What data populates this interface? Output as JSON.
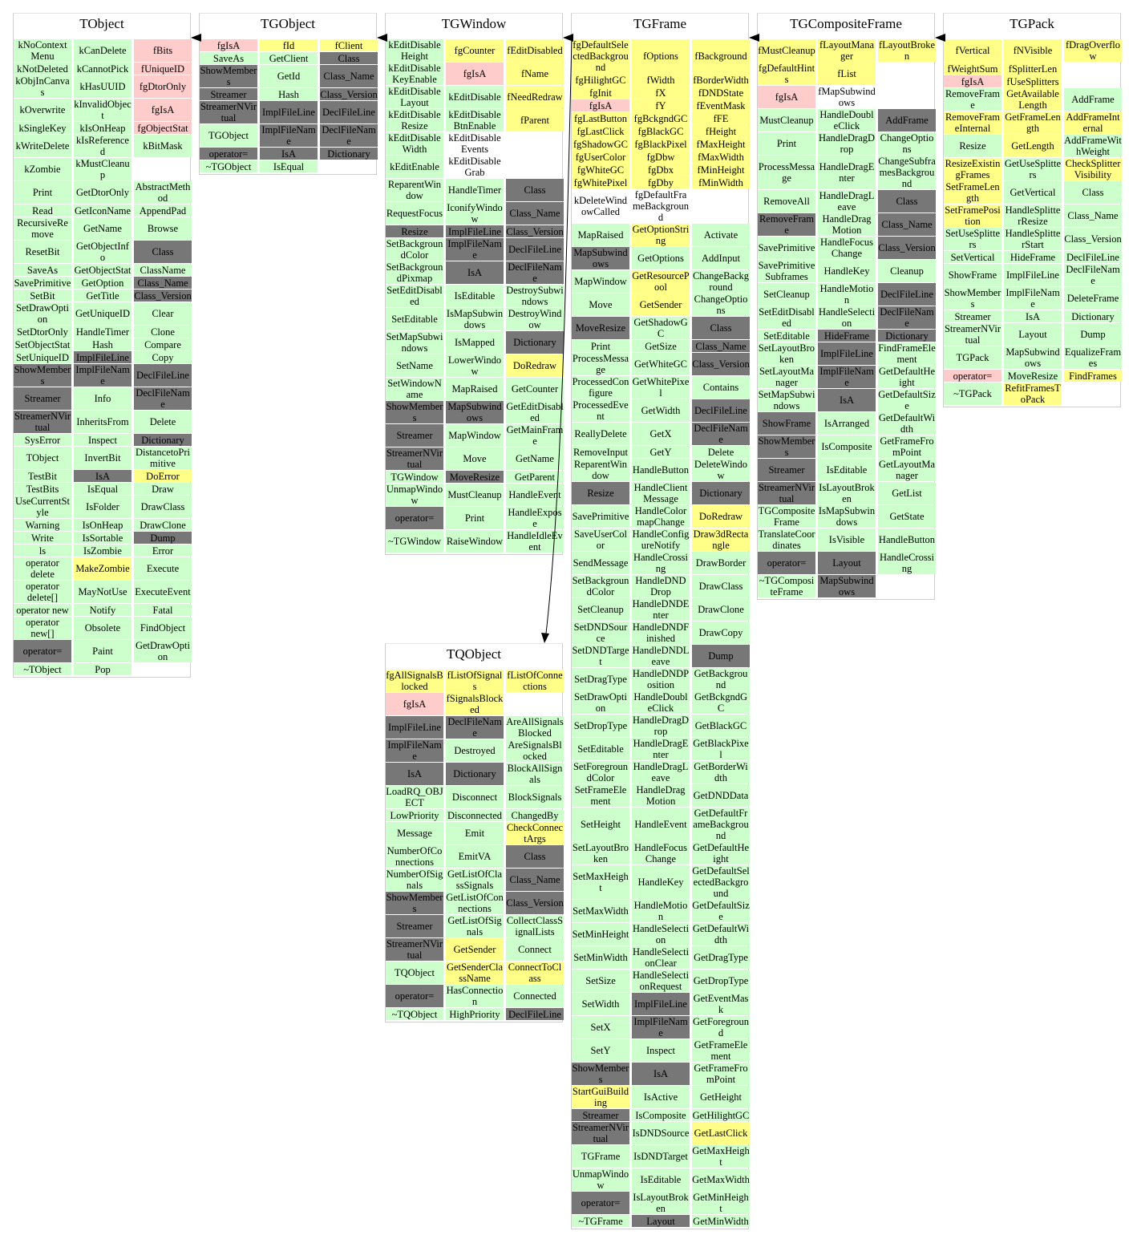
{
  "fill_colors": {
    "s": "#ccffcc",
    "p": "#ffcccc",
    "y": "#ffff88",
    "g": "#777777",
    "n": "transparent"
  },
  "classes": [
    {
      "name": "TObject",
      "columns": [
        {
          "items": [
            "kNoContextMenu",
            "kNotDeleted",
            "kObjInCanvas",
            "kOverwrite",
            "kSingleKey",
            "kWriteDelete",
            "kZombie",
            "Print",
            "Read",
            "RecursiveRemove",
            "ResetBit",
            "SaveAs",
            "SavePrimitive",
            "SetBit",
            "SetDrawOption",
            "SetDtorOnly",
            "SetObjectStat",
            "SetUniqueID",
            "ShowMembers",
            "Streamer",
            "StreamerNVirtual",
            "SysError",
            "TObject",
            "TestBit",
            "TestBits",
            "UseCurrentStyle",
            "Warning",
            "Write",
            "ls",
            "operator delete",
            "operator delete[]",
            "operator new",
            "operator new[]",
            "operator=",
            "~TObject"
          ],
          "fills": "ssssssssssssssssssgggssssssssssssgs"
        },
        {
          "items": [
            "kCanDelete",
            "kCannotPick",
            "kHasUUID",
            "kInvalidObject",
            "kIsOnHeap",
            "kIsReferenced",
            "kMustCleanup",
            "GetDtorOnly",
            "GetIconName",
            "GetName",
            "GetObjectInfo",
            "GetObjectStat",
            "GetOption",
            "GetTitle",
            "GetUniqueID",
            "HandleTimer",
            "Hash",
            "ImplFileLine",
            "ImplFileName",
            "Info",
            "InheritsFrom",
            "Inspect",
            "InvertBit",
            "IsA",
            "IsEqual",
            "IsFolder",
            "IsOnHeap",
            "IsSortable",
            "IsZombie",
            "MakeZombie",
            "MayNotUse",
            "Notify",
            "Obsolete",
            "Paint",
            "Pop"
          ],
          "fills": "sssssssssssssssssggssssgsssssysssss"
        },
        {
          "items": [
            "fBits",
            "fUniqueID",
            "fgDtorOnly",
            "fgIsA",
            "fgObjectStat",
            "kBitMask",
            "",
            "AbstractMethod",
            "AppendPad",
            "Browse",
            "Class",
            "ClassName",
            "Class_Name",
            "Class_Version",
            "Clear",
            "Clone",
            "Compare",
            "Copy",
            "DeclFileLine",
            "DeclFileName",
            "Delete",
            "Dictionary",
            "DistancetoPrimitive",
            "DoError",
            "Draw",
            "DrawClass",
            "DrawClone",
            "Dump",
            "Error",
            "Execute",
            "ExecuteEvent",
            "Fatal",
            "FindObject",
            "GetDrawOption",
            ""
          ],
          "fills": "pppppsnsssgsggssssggsgsysssgssssssn"
        }
      ]
    },
    {
      "name": "TGObject",
      "columns": [
        {
          "items": [
            "fgIsA",
            "SaveAs",
            "ShowMembers",
            "Streamer",
            "StreamerNVirtual",
            "TGObject",
            "operator=",
            "~TGObject"
          ],
          "fills": "psgggsgs"
        },
        {
          "items": [
            "fId",
            "GetClient",
            "GetId",
            "Hash",
            "ImplFileLine",
            "ImplFileName",
            "IsA",
            "IsEqual"
          ],
          "fills": "ysssgggs"
        },
        {
          "items": [
            "fClient",
            "Class",
            "Class_Name",
            "Class_Version",
            "DeclFileLine",
            "DeclFileName",
            "Dictionary",
            ""
          ],
          "fills": "yggggggn"
        }
      ]
    },
    {
      "name": "TGWindow",
      "columns": [
        {
          "items": [
            "kEditDisableHeight",
            "kEditDisableKeyEnable",
            "kEditDisableLayout",
            "kEditDisableResize",
            "kEditDisableWidth",
            "kEditEnable",
            "ReparentWindow",
            "RequestFocus",
            "Resize",
            "SetBackgroundColor",
            "SetBackgroundPixmap",
            "SetEditDisabled",
            "SetEditable",
            "SetMapSubwindows",
            "SetName",
            "SetWindowName",
            "ShowMembers",
            "Streamer",
            "StreamerNVirtual",
            "TGWindow",
            "UnmapWindow",
            "operator=",
            "~TGWindow"
          ],
          "fills": "ssssssssgsssssssgggssgs"
        },
        {
          "items": [
            "fgCounter",
            "fgIsA",
            "kEditDisable",
            "kEditDisableBtnEnable",
            "kEditDisableEvents",
            "kEditDisableGrab",
            "HandleTimer",
            "IconifyWindow",
            "ImplFileLine",
            "ImplFileName",
            "IsA",
            "IsEditable",
            "IsMapSubwindows",
            "IsMapped",
            "LowerWindow",
            "MapRaised",
            "MapSubwindows",
            "MapWindow",
            "Move",
            "MoveResize",
            "MustCleanup",
            "Print",
            "RaiseWindow"
          ],
          "fills": "ypssnnssgggsssssgssgsss"
        },
        {
          "items": [
            "fEditDisabled",
            "fName",
            "fNeedRedraw",
            "fParent",
            "",
            "",
            "Class",
            "Class_Name",
            "Class_Version",
            "DeclFileLine",
            "DeclFileName",
            "DestroySubwindows",
            "DestroyWindow",
            "Dictionary",
            "DoRedraw",
            "GetCounter",
            "GetEditDisabled",
            "GetMainFrame",
            "GetName",
            "GetParent",
            "HandleEvent",
            "HandleExpose",
            "HandleIdleEvent"
          ],
          "fills": "yyyynngggggssgyssssssss"
        }
      ]
    },
    {
      "name": "TGFrame",
      "columns": [
        {
          "items": [
            "fgDefaultSelectedBackground",
            "fgHilightGC",
            "fgInit",
            "fgIsA",
            "fgLastButton",
            "fgLastClick",
            "fgShadowGC",
            "fgUserColor",
            "fgWhiteGC",
            "fgWhitePixel",
            "kDeleteWindowCalled",
            "MapRaised",
            "MapSubwindows",
            "MapWindow",
            "Move",
            "MoveResize",
            "Print",
            "ProcessMessage",
            "ProcessedConfigure",
            "ProcessedEvent",
            "ReallyDelete",
            "RemoveInput",
            "ReparentWindow",
            "Resize",
            "SavePrimitive",
            "SaveUserColor",
            "SendMessage",
            "SetBackgroundColor",
            "SetCleanup",
            "SetDNDSource",
            "SetDNDTarget",
            "SetDragType",
            "SetDrawOption",
            "SetDropType",
            "SetEditable",
            "SetForegroundColor",
            "SetFrameElement",
            "SetHeight",
            "SetLayoutBroken",
            "SetMaxHeight",
            "SetMaxWidth",
            "SetMinHeight",
            "SetMinWidth",
            "SetSize",
            "SetWidth",
            "SetX",
            "SetY",
            "ShowMembers",
            "StartGuiBuilding",
            "Streamer",
            "StreamerNVirtual",
            "TGFrame",
            "UnmapWindow",
            "operator=",
            "~TGFrame"
          ],
          "fills": "yyypyyyyyynsgssgsssssssgsssssssssssssssssssssssgyggssgs"
        },
        {
          "items": [
            "fOptions",
            "fWidth",
            "fX",
            "fY",
            "fgBckgndGC",
            "fgBlackGC",
            "fgBlackPixel",
            "fgDbw",
            "fgDbx",
            "fgDby",
            "fgDefaultFrameBackground",
            "GetOptionString",
            "GetOptions",
            "GetResourcePool",
            "GetSender",
            "GetShadowGC",
            "GetSize",
            "GetWhiteGC",
            "GetWhitePixel",
            "GetWidth",
            "GetX",
            "GetY",
            "HandleButton",
            "HandleClientMessage",
            "HandleColormapChange",
            "HandleConfigureNotify",
            "HandleCrossing",
            "HandleDNDDrop",
            "HandleDNDEnter",
            "HandleDNDFinished",
            "HandleDNDLeave",
            "HandleDNDPosition",
            "HandleDoubleClick",
            "HandleDragDrop",
            "HandleDragEnter",
            "HandleDragLeave",
            "HandleDragMotion",
            "HandleEvent",
            "HandleFocusChange",
            "HandleKey",
            "HandleMotion",
            "HandleSelection",
            "HandleSelectionClear",
            "HandleSelectionRequest",
            "ImplFileLine",
            "ImplFileName",
            "Inspect",
            "IsA",
            "IsActive",
            "IsComposite",
            "IsDNDSource",
            "IsDNDTarget",
            "IsEditable",
            "IsLayoutBroken",
            "Layout"
          ],
          "fills": "yyyyyyyyyynysyysssssssssssssssssssssssssssssggsgssssssg"
        },
        {
          "items": [
            "fBackground",
            "fBorderWidth",
            "fDNDState",
            "fEventMask",
            "fFE",
            "fHeight",
            "fMaxHeight",
            "fMaxWidth",
            "fMinHeight",
            "fMinWidth",
            "",
            "Activate",
            "AddInput",
            "ChangeBackground",
            "ChangeOptions",
            "Class",
            "Class_Name",
            "Class_Version",
            "Contains",
            "DeclFileLine",
            "DeclFileName",
            "Delete",
            "DeleteWindow",
            "Dictionary",
            "DoRedraw",
            "Draw3dRectangle",
            "DrawBorder",
            "DrawClass",
            "DrawClone",
            "DrawCopy",
            "Dump",
            "GetBackground",
            "GetBckgndGC",
            "GetBlackGC",
            "GetBlackPixel",
            "GetBorderWidth",
            "GetDNDData",
            "GetDefaultFrameBackground",
            "GetDefaultHeight",
            "GetDefaultSelectedBackground",
            "GetDefaultSize",
            "GetDefaultWidth",
            "GetDragType",
            "GetDropType",
            "GetEventMask",
            "GetForeground",
            "GetFrameElement",
            "GetFrameFromPoint",
            "GetHeight",
            "GetHilightGC",
            "GetLastClick",
            "GetMaxHeight",
            "GetMaxWidth",
            "GetMinHeight",
            "GetMinWidth"
          ],
          "fills": "yyyyyyyyyynssssgggsggssgyyssssgsssssssssssssssssssyssss"
        }
      ]
    },
    {
      "name": "TGCompositeFrame",
      "columns": [
        {
          "items": [
            "fMustCleanup",
            "fgDefaultHints",
            "fgIsA",
            "MustCleanup",
            "Print",
            "ProcessMessage",
            "RemoveAll",
            "RemoveFrame",
            "SavePrimitive",
            "SavePrimitiveSubframes",
            "SetCleanup",
            "SetEditDisabled",
            "SetEditable",
            "SetLayoutBroken",
            "SetLayoutManager",
            "SetMapSubwindows",
            "ShowFrame",
            "ShowMembers",
            "Streamer",
            "StreamerNVirtual",
            "TGCompositeFrame",
            "TranslateCoordinates",
            "operator=",
            "~TGCompositeFrame"
          ],
          "fills": "yypssssgssssssssggggssgs"
        },
        {
          "items": [
            "fLayoutManager",
            "fList",
            "fMapSubwindows",
            "HandleDoubleClick",
            "HandleDragDrop",
            "HandleDragEnter",
            "HandleDragLeave",
            "HandleDragMotion",
            "HandleFocusChange",
            "HandleKey",
            "HandleMotion",
            "HandleSelection",
            "HideFrame",
            "ImplFileLine",
            "ImplFileName",
            "IsA",
            "IsArranged",
            "IsComposite",
            "IsEditable",
            "IsLayoutBroken",
            "IsMapSubwindows",
            "IsVisible",
            "Layout",
            "MapSubwindows"
          ],
          "fills": "yynsssssssssggggssssssgg"
        },
        {
          "items": [
            "fLayoutBroken",
            "",
            "",
            "AddFrame",
            "ChangeOptions",
            "ChangeSubframesBackground",
            "Class",
            "Class_Name",
            "Class_Version",
            "Cleanup",
            "DeclFileLine",
            "DeclFileName",
            "Dictionary",
            "FindFrameElement",
            "GetDefaultHeight",
            "GetDefaultSize",
            "GetDefaultWidth",
            "GetFrameFromPoint",
            "GetLayoutManager",
            "GetList",
            "GetState",
            "HandleButton",
            "HandleCrossing",
            ""
          ],
          "fills": "ynngssgggsgggssssssssssn"
        }
      ]
    },
    {
      "name": "TGPack",
      "columns": [
        {
          "items": [
            "fVertical",
            "fWeightSum",
            "fgIsA",
            "RemoveFrame",
            "RemoveFrameInternal",
            "Resize",
            "ResizeExistingFrames",
            "SetFrameLength",
            "SetFramePosition",
            "SetUseSplitters",
            "SetVertical",
            "ShowFrame",
            "ShowMembers",
            "Streamer",
            "StreamerNVirtual",
            "TGPack",
            "operator=",
            "~TGPack"
          ],
          "fills": "yypsysyyysssssssps"
        },
        {
          "items": [
            "fNVisible",
            "fSplitterLen",
            "fUseSplitters",
            "GetAvailableLength",
            "GetFrameLength",
            "GetLength",
            "GetUseSplitters",
            "GetVertical",
            "HandleSplitterResize",
            "HandleSplitterStart",
            "HideFrame",
            "ImplFileLine",
            "ImplFileName",
            "IsA",
            "Layout",
            "MapSubwindows",
            "MoveResize",
            "RefitFramesToPack"
          ],
          "fills": "yyyyyysssssssssssy"
        },
        {
          "items": [
            "fDragOverflow",
            "",
            "",
            "AddFrame",
            "AddFrameInternal",
            "AddFrameWithWeight",
            "CheckSplitterVisibility",
            "Class",
            "Class_Name",
            "Class_Version",
            "DeclFileLine",
            "DeclFileName",
            "DeleteFrame",
            "Dictionary",
            "Dump",
            "EqualizeFrames",
            "FindFrames",
            ""
          ],
          "fills": "ynnsysysssssssssyn"
        }
      ]
    },
    {
      "name": "TQObject",
      "columns": [
        {
          "items": [
            "fgAllSignalsBlocked",
            "fgIsA",
            "ImplFileLine",
            "ImplFileName",
            "IsA",
            "LoadRQ_OBJECT",
            "LowPriority",
            "Message",
            "NumberOfConnections",
            "NumberOfSignals",
            "ShowMembers",
            "Streamer",
            "StreamerNVirtual",
            "TQObject",
            "operator=",
            "~TQObject"
          ],
          "fills": "ypgggsssssgggsgs"
        },
        {
          "items": [
            "fListOfSignals",
            "fSignalsBlocked",
            "DeclFileName",
            "Destroyed",
            "Dictionary",
            "Disconnect",
            "Disconnected",
            "Emit",
            "EmitVA",
            "GetListOfClassSignals",
            "GetListOfConnections",
            "GetListOfSignals",
            "GetSender",
            "GetSenderClassName",
            "HasConnection",
            "HighPriority"
          ],
          "fills": "yygsgsssssssyyss"
        },
        {
          "items": [
            "fListOfConnections",
            "",
            "AreAllSignalsBlocked",
            "AreSignalsBlocked",
            "BlockAllSignals",
            "BlockSignals",
            "ChangedBy",
            "CheckConnectArgs",
            "Class",
            "Class_Name",
            "Class_Version",
            "CollectClassSignalLists",
            "Connect",
            "ConnectToClass",
            "Connected",
            "DeclFileLine"
          ],
          "fills": "ynsssssygggssysg"
        }
      ]
    }
  ],
  "inheritance": [
    {
      "child": "TGObject",
      "parent": "TObject"
    },
    {
      "child": "TGWindow",
      "parent": "TGObject"
    },
    {
      "child": "TGFrame",
      "parent": "TGWindow"
    },
    {
      "child": "TGCompositeFrame",
      "parent": "TGFrame"
    },
    {
      "child": "TGPack",
      "parent": "TGCompositeFrame"
    },
    {
      "child": "TGFrame",
      "parent": "TQObject"
    }
  ]
}
